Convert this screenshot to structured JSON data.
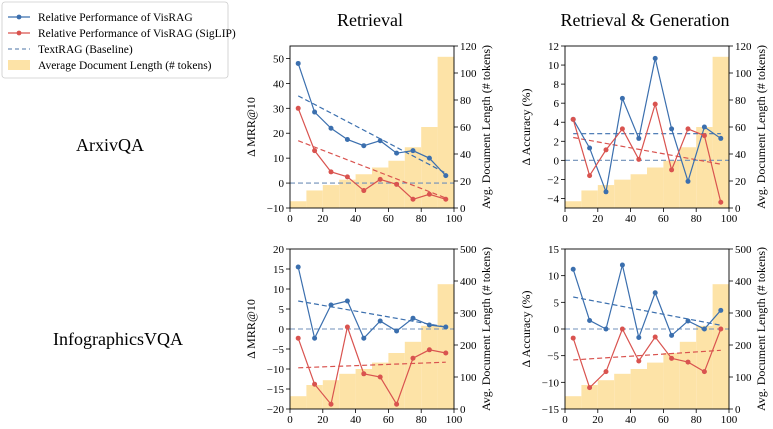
{
  "legend": {
    "items": [
      {
        "label": "Relative Performance of VisRAG",
        "kind": "line-marker",
        "color": "#3b6fae"
      },
      {
        "label": "Relative Performance of VisRAG (SigLIP)",
        "kind": "line-marker",
        "color": "#d9534f"
      },
      {
        "label": "TextRAG (Baseline)",
        "kind": "dashed",
        "color": "#6f8fb8"
      },
      {
        "label": "Average Document Length (# tokens)",
        "kind": "patch",
        "color": "#fde3a7"
      }
    ]
  },
  "column_titles": [
    "Retrieval",
    "Retrieval & Generation"
  ],
  "row_labels": [
    "ArxivQA",
    "InfographicsVQA"
  ],
  "colors": {
    "visrag": "#3b6fae",
    "siglip": "#d9534f",
    "baseline": "#6f8fb8",
    "doclen": "#fde3a7"
  },
  "chart_data": [
    {
      "type": "line",
      "row": "ArxivQA",
      "column": "Retrieval",
      "ylabel": "Δ MRR@10",
      "y2label": "Avg. Document Length (# tokens)",
      "ylim": [
        -10,
        55
      ],
      "yticks": [
        -10,
        0,
        10,
        20,
        30,
        40,
        50
      ],
      "y2lim": [
        0,
        120
      ],
      "y2ticks": [
        0,
        20,
        40,
        60,
        80,
        100,
        120
      ],
      "xlim": [
        0,
        100
      ],
      "xticks": [
        0,
        20,
        40,
        60,
        80,
        100
      ],
      "x": [
        5,
        15,
        25,
        35,
        45,
        55,
        65,
        75,
        85,
        95
      ],
      "series": [
        {
          "name": "Relative Performance of VisRAG",
          "values": [
            48,
            28.5,
            22,
            17.5,
            15,
            17,
            12,
            13,
            10,
            3
          ]
        },
        {
          "name": "Relative Performance of VisRAG (SigLIP)",
          "values": [
            30,
            13,
            4.5,
            2.5,
            -3,
            1.5,
            -0.5,
            -6.5,
            -4.5,
            -6.5
          ]
        }
      ],
      "trend_lines": [
        {
          "series": "Relative Performance of VisRAG",
          "start": [
            5,
            35
          ],
          "end": [
            95,
            4
          ]
        },
        {
          "series": "Relative Performance of VisRAG (SigLIP)",
          "start": [
            5,
            17
          ],
          "end": [
            95,
            -6
          ]
        }
      ],
      "baseline": 0,
      "doc_length": {
        "bins": [
          [
            0,
            10
          ],
          [
            10,
            20
          ],
          [
            20,
            30
          ],
          [
            30,
            40
          ],
          [
            40,
            50
          ],
          [
            50,
            60
          ],
          [
            60,
            70
          ],
          [
            70,
            80
          ],
          [
            80,
            90
          ],
          [
            90,
            100
          ]
        ],
        "values": [
          5,
          13,
          17,
          21,
          25,
          30,
          35,
          45,
          60,
          112
        ]
      }
    },
    {
      "type": "line",
      "row": "ArxivQA",
      "column": "Retrieval & Generation",
      "ylabel": "Δ Accuracy (%)",
      "y2label": "Avg. Document Length (# tokens)",
      "ylim": [
        -5,
        12
      ],
      "yticks": [
        -4,
        -2,
        0,
        2,
        4,
        6,
        8,
        10,
        12
      ],
      "y2lim": [
        0,
        120
      ],
      "y2ticks": [
        0,
        20,
        40,
        60,
        80,
        100,
        120
      ],
      "xlim": [
        0,
        100
      ],
      "xticks": [
        0,
        20,
        40,
        60,
        80,
        100
      ],
      "x": [
        5,
        15,
        25,
        35,
        45,
        55,
        65,
        75,
        85,
        95
      ],
      "series": [
        {
          "name": "Relative Performance of VisRAG",
          "values": [
            4.3,
            1.3,
            -3.3,
            6.5,
            2.3,
            10.7,
            3.3,
            -2.2,
            3.5,
            2.3
          ]
        },
        {
          "name": "Relative Performance of VisRAG (SigLIP)",
          "values": [
            4.3,
            -1.6,
            1.1,
            3.3,
            0.1,
            5.9,
            -1.0,
            3.3,
            2.6,
            -4.4
          ]
        }
      ],
      "trend_lines": [
        {
          "series": "Relative Performance of VisRAG",
          "start": [
            5,
            2.8
          ],
          "end": [
            95,
            2.8
          ]
        },
        {
          "series": "Relative Performance of VisRAG (SigLIP)",
          "start": [
            5,
            2.4
          ],
          "end": [
            95,
            -0.4
          ]
        }
      ],
      "baseline": 0,
      "doc_length": {
        "bins": [
          [
            0,
            10
          ],
          [
            10,
            20
          ],
          [
            20,
            30
          ],
          [
            30,
            40
          ],
          [
            40,
            50
          ],
          [
            50,
            60
          ],
          [
            60,
            70
          ],
          [
            70,
            80
          ],
          [
            80,
            90
          ],
          [
            90,
            100
          ]
        ],
        "values": [
          5,
          13,
          17,
          21,
          25,
          30,
          35,
          45,
          60,
          112
        ]
      }
    },
    {
      "type": "line",
      "row": "InfographicsVQA",
      "column": "Retrieval",
      "ylabel": "Δ MRR@10",
      "y2label": "Avg. Document Length (# tokens)",
      "ylim": [
        -20,
        20
      ],
      "yticks": [
        -20,
        -15,
        -10,
        -5,
        0,
        5,
        10,
        15,
        20
      ],
      "y2lim": [
        0,
        500
      ],
      "y2ticks": [
        0,
        100,
        200,
        300,
        400,
        500
      ],
      "xlim": [
        0,
        100
      ],
      "xticks": [
        0,
        20,
        40,
        60,
        80,
        100
      ],
      "x": [
        5,
        15,
        25,
        35,
        45,
        55,
        65,
        75,
        85,
        95
      ],
      "series": [
        {
          "name": "Relative Performance of VisRAG",
          "values": [
            15.5,
            -2.3,
            6,
            7,
            -2.3,
            2,
            -0.5,
            2.7,
            1,
            0.5
          ]
        },
        {
          "name": "Relative Performance of VisRAG (SigLIP)",
          "values": [
            -2.3,
            -13.8,
            -18.8,
            0.5,
            -11.2,
            -12,
            -18.8,
            -7.3,
            -5.2,
            -6
          ]
        }
      ],
      "trend_lines": [
        {
          "series": "Relative Performance of VisRAG",
          "start": [
            5,
            7
          ],
          "end": [
            95,
            0.5
          ]
        },
        {
          "series": "Relative Performance of VisRAG (SigLIP)",
          "start": [
            5,
            -9.7
          ],
          "end": [
            95,
            -8.3
          ]
        }
      ],
      "baseline": 0,
      "doc_length": {
        "bins": [
          [
            0,
            10
          ],
          [
            10,
            20
          ],
          [
            20,
            30
          ],
          [
            30,
            40
          ],
          [
            40,
            50
          ],
          [
            50,
            60
          ],
          [
            60,
            70
          ],
          [
            70,
            80
          ],
          [
            80,
            90
          ],
          [
            90,
            100
          ]
        ],
        "values": [
          40,
          75,
          90,
          110,
          125,
          145,
          175,
          210,
          260,
          390
        ]
      }
    },
    {
      "type": "line",
      "row": "InfographicsVQA",
      "column": "Retrieval & Generation",
      "ylabel": "Δ Accuracy (%)",
      "y2label": "Avg. Document Length (# tokens)",
      "ylim": [
        -15,
        15
      ],
      "yticks": [
        -15,
        -10,
        -5,
        0,
        5,
        10,
        15
      ],
      "y2lim": [
        0,
        500
      ],
      "y2ticks": [
        0,
        100,
        200,
        300,
        400,
        500
      ],
      "xlim": [
        0,
        100
      ],
      "xticks": [
        0,
        20,
        40,
        60,
        80,
        100
      ],
      "x": [
        5,
        15,
        25,
        35,
        45,
        55,
        65,
        75,
        85,
        95
      ],
      "series": [
        {
          "name": "Relative Performance of VisRAG",
          "values": [
            11.2,
            1.6,
            0,
            12,
            -1.6,
            6.8,
            -1.2,
            1.5,
            0,
            3.5
          ]
        },
        {
          "name": "Relative Performance of VisRAG (SigLIP)",
          "values": [
            -1.7,
            -11,
            -8,
            0,
            -6,
            -1.5,
            -5.5,
            -6.2,
            -8,
            0
          ]
        }
      ],
      "trend_lines": [
        {
          "series": "Relative Performance of VisRAG",
          "start": [
            5,
            6
          ],
          "end": [
            95,
            0.7
          ]
        },
        {
          "series": "Relative Performance of VisRAG (SigLIP)",
          "start": [
            5,
            -5.8
          ],
          "end": [
            95,
            -4
          ]
        }
      ],
      "baseline": 0,
      "doc_length": {
        "bins": [
          [
            0,
            10
          ],
          [
            10,
            20
          ],
          [
            20,
            30
          ],
          [
            30,
            40
          ],
          [
            40,
            50
          ],
          [
            50,
            60
          ],
          [
            60,
            70
          ],
          [
            70,
            80
          ],
          [
            80,
            90
          ],
          [
            90,
            100
          ]
        ],
        "values": [
          40,
          75,
          90,
          110,
          125,
          145,
          175,
          210,
          260,
          390
        ]
      }
    }
  ]
}
